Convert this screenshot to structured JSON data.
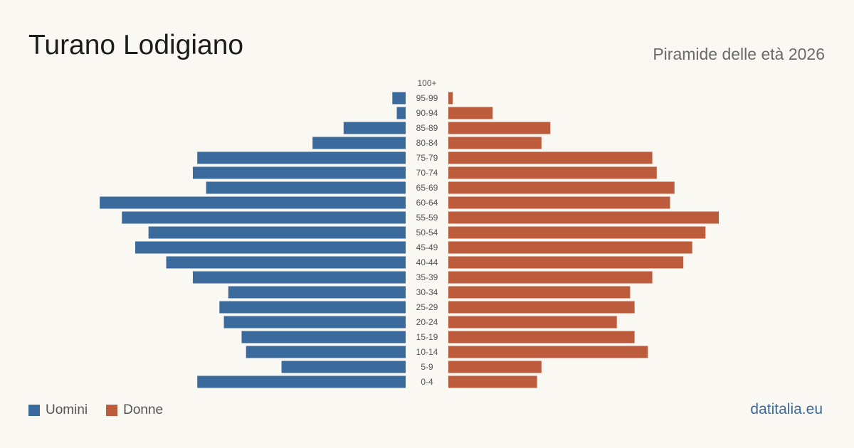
{
  "header": {
    "title": "Turano Lodigiano",
    "subtitle": "Piramide delle età 2026"
  },
  "footer": {
    "source": "datitalia.eu"
  },
  "colors": {
    "men": "#3b6a9d",
    "women": "#bc5c3c",
    "label": "#555555",
    "source": "#3b6a9d"
  },
  "chart_data": {
    "type": "bar",
    "orientation": "horizontal-pyramid",
    "categories": [
      "100+",
      "95-99",
      "90-94",
      "85-89",
      "80-84",
      "75-79",
      "70-74",
      "65-69",
      "60-64",
      "55-59",
      "50-54",
      "45-49",
      "40-44",
      "35-39",
      "30-34",
      "25-29",
      "20-24",
      "15-19",
      "10-14",
      "5-9",
      "0-4"
    ],
    "series": [
      {
        "name": "Uomini",
        "values": [
          0,
          3,
          2,
          14,
          21,
          47,
          48,
          45,
          69,
          64,
          58,
          61,
          54,
          48,
          40,
          42,
          41,
          37,
          36,
          28,
          47
        ]
      },
      {
        "name": "Donne",
        "values": [
          0,
          1,
          10,
          23,
          21,
          46,
          47,
          51,
          50,
          61,
          58,
          55,
          53,
          46,
          41,
          42,
          38,
          42,
          45,
          21,
          20
        ]
      }
    ],
    "legend": [
      "Uomini",
      "Donne"
    ],
    "legend_position": "bottom-left",
    "xlim": [
      0,
      70
    ],
    "grid": false
  }
}
